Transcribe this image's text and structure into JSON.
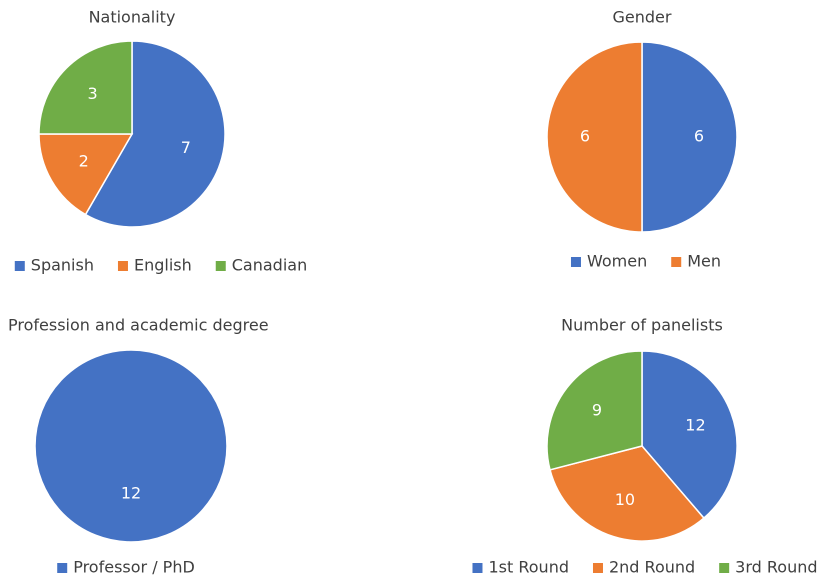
{
  "chart_data": [
    {
      "type": "pie",
      "title": "Nationality",
      "categories": [
        "Spanish",
        "English",
        "Canadian"
      ],
      "values": [
        7,
        2,
        3
      ],
      "colors": [
        "#4472c4",
        "#ed7d31",
        "#70ad47"
      ],
      "legend": "bottom"
    },
    {
      "type": "pie",
      "title": "Gender",
      "categories": [
        "Women",
        "Men"
      ],
      "values": [
        6,
        6
      ],
      "colors": [
        "#4472c4",
        "#ed7d31"
      ],
      "legend": "bottom"
    },
    {
      "type": "pie",
      "title": "Profession and academic degree",
      "categories": [
        "Professor / PhD"
      ],
      "values": [
        12
      ],
      "colors": [
        "#4472c4"
      ],
      "legend": "bottom"
    },
    {
      "type": "pie",
      "title": "Number of panelists",
      "categories": [
        "1st Round",
        "2nd Round",
        "3rd Round"
      ],
      "values": [
        12,
        10,
        9
      ],
      "colors": [
        "#4472c4",
        "#ed7d31",
        "#70ad47"
      ],
      "legend": "bottom"
    }
  ]
}
